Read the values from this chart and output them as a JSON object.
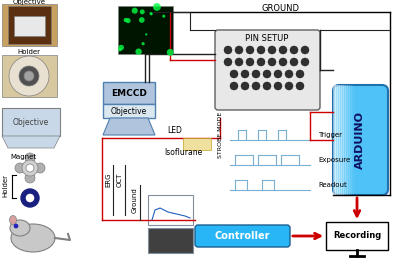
{
  "title": "",
  "bg_color": "#ffffff",
  "ground_label": "GROUND",
  "pin_setup_label": "PIN SETUP",
  "emccd_label": "EMCCD",
  "objective_label": "Objective",
  "led_label": "LED",
  "isoflurane_label": "Isoflurane",
  "arduino_label": "ARDUINO",
  "controller_label": "Controller",
  "recording_label": "Recording",
  "strobe_mode_label": "STROBE MODE",
  "trigger_label": "Trigger",
  "exposure_label": "Exposure",
  "readout_label": "Readout",
  "erg_label": "ERG",
  "oct_label": "OCT",
  "ground2_label": "Ground",
  "magnet_label": "Magnet",
  "holder_label": "Holder",
  "obj_left_label": "Objective",
  "holder_top_label": "Holder",
  "arduino_color": "#4fc3f7",
  "controller_color": "#29b6f6",
  "emccd_color": "#b0c4de",
  "objective_box_color": "#c8d8e8",
  "pin_setup_color": "#d3d3d3",
  "red_line_color": "#cc0000",
  "dark_line_color": "#222222",
  "signal_line_color": "#7ab0d4"
}
